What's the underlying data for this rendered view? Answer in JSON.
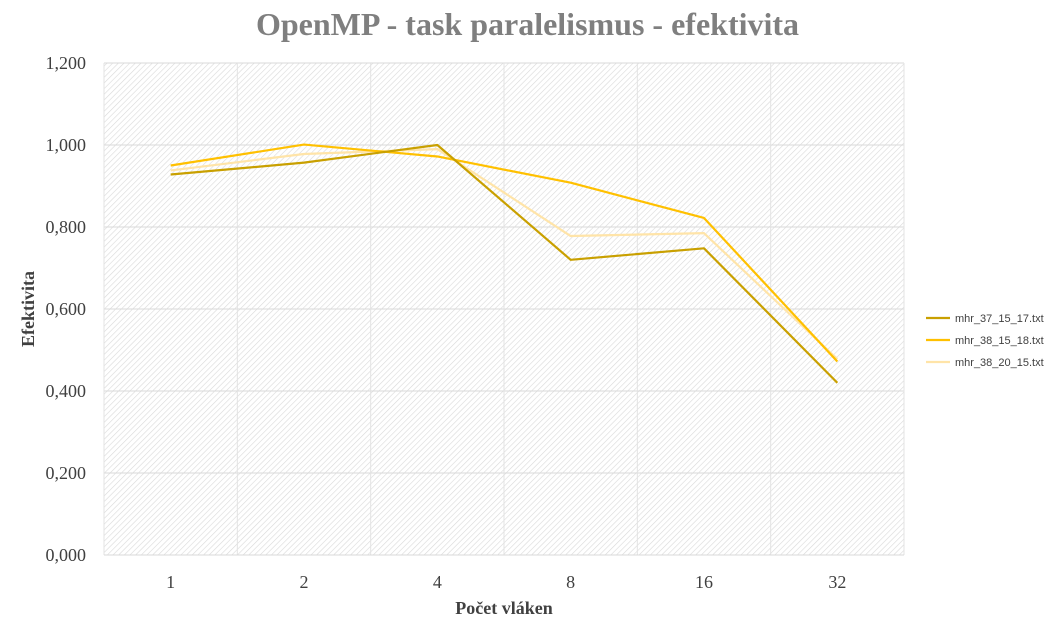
{
  "chart_data": {
    "type": "line",
    "title": "OpenMP - task paralelismus - efektivita",
    "xlabel": "Počet vláken",
    "ylabel": "Efektivita",
    "categories": [
      "1",
      "2",
      "4",
      "8",
      "16",
      "32"
    ],
    "ylim": [
      0,
      1.2
    ],
    "yticks": [
      "0,000",
      "0,200",
      "0,400",
      "0,600",
      "0,800",
      "1,000",
      "1,200"
    ],
    "grid": true,
    "legend_position": "right",
    "series": [
      {
        "name": "mhr_37_15_17.txt",
        "color": "#c9a000",
        "values": [
          0.928,
          0.957,
          1.0,
          0.72,
          0.748,
          0.42
        ]
      },
      {
        "name": "mhr_38_15_18.txt",
        "color": "#ffc000",
        "values": [
          0.95,
          1.001,
          0.972,
          0.908,
          0.822,
          0.472
        ]
      },
      {
        "name": "mhr_38_20_15.txt",
        "color": "#ffe4a8",
        "values": [
          0.938,
          0.978,
          0.99,
          0.778,
          0.785,
          0.478
        ]
      }
    ]
  }
}
